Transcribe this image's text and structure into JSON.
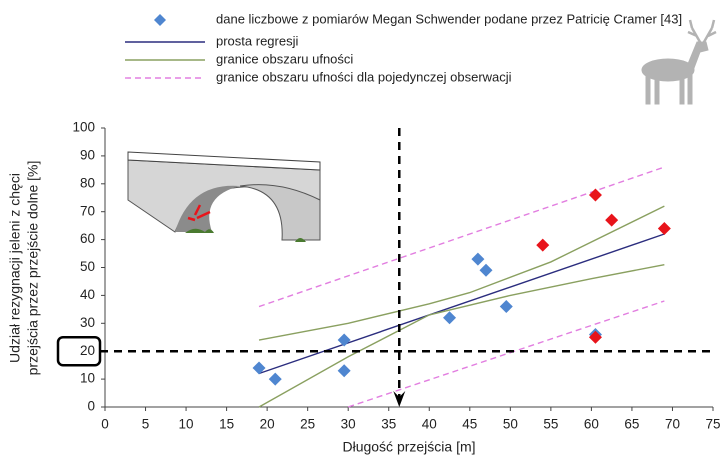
{
  "chart_data": {
    "type": "scatter",
    "xlabel": "Długość przejścia [m]",
    "ylabel": [
      "Udział rezygnacji jeleni z chęci",
      "przejścia przez przejście dolne [%]"
    ],
    "xlim": [
      0,
      75
    ],
    "ylim": [
      0,
      100
    ],
    "xticks": [
      0,
      5,
      10,
      15,
      20,
      25,
      30,
      35,
      40,
      45,
      50,
      55,
      60,
      65,
      70,
      75
    ],
    "yticks": [
      0,
      10,
      20,
      30,
      40,
      50,
      60,
      70,
      80,
      90,
      100
    ],
    "highlight_ytick": 20,
    "reference_lines": {
      "x": 36.3,
      "y": 20
    },
    "series": [
      {
        "name": "dane liczbowe z pomiarów Megan Schwender podane przez Patricię Cramer [43]",
        "kind": "marker",
        "color": "#4f86d0",
        "x": [
          19,
          21,
          29.5,
          29.5,
          42.5,
          46,
          47,
          49.5,
          60.5
        ],
        "values": [
          14,
          10,
          24,
          13,
          32,
          53,
          49,
          36,
          26
        ]
      },
      {
        "kind": "marker",
        "color": "#e8141b",
        "x": [
          54,
          60.5,
          62.5,
          69,
          60.5
        ],
        "values": [
          58,
          76,
          67,
          64,
          25
        ]
      },
      {
        "name": "prosta regresji",
        "kind": "line",
        "color": "#2b2d7e",
        "x": [
          19,
          69
        ],
        "values": [
          12,
          62
        ]
      },
      {
        "name": "granice obszaru ufności",
        "kind": "line",
        "color": "#8aa060",
        "x": [
          19,
          30,
          40,
          45,
          55,
          69
        ],
        "values": [
          24,
          30,
          37,
          41,
          52,
          72
        ]
      },
      {
        "kind": "line",
        "color": "#8aa060",
        "x": [
          19,
          30,
          40,
          50,
          60,
          69
        ],
        "values": [
          0,
          18,
          33,
          40,
          46,
          51
        ]
      },
      {
        "name": "granice obszaru ufności dla pojedynczej obserwacji",
        "kind": "dashed",
        "color": "#e27ee0",
        "x": [
          19,
          69
        ],
        "values": [
          36,
          86
        ]
      },
      {
        "kind": "dashed",
        "color": "#e27ee0",
        "x": [
          30,
          69
        ],
        "values": [
          0,
          38
        ]
      }
    ]
  }
}
